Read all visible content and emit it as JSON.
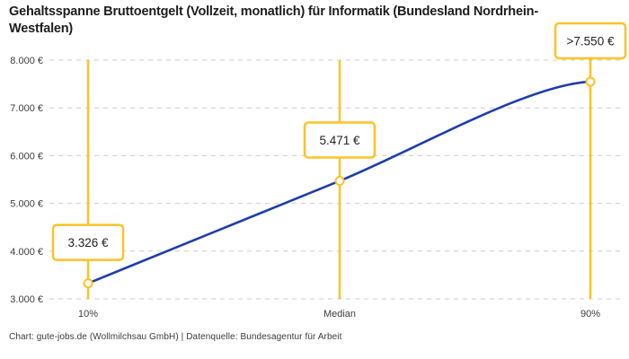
{
  "header": {
    "title": "Gehaltsspanne Bruttoentgelt (Vollzeit, monatlich) für Informatik (Bundesland Nordrhein-Westfalen)"
  },
  "footer": {
    "text": "Chart: gute-jobs.de (Wollmilchsau GmbH) | Datenquelle: Bundesagentur für Arbeit"
  },
  "chart_data": {
    "type": "line",
    "title": "Gehaltsspanne Bruttoentgelt (Vollzeit, monatlich) für Informatik (Bundesland Nordrhein-Westfalen)",
    "categories": [
      "10%",
      "Median",
      "90%"
    ],
    "values": [
      3326,
      5471,
      7550
    ],
    "point_labels": [
      "3.326 €",
      "5.471 €",
      ">7.550 €"
    ],
    "yticks": [
      3000,
      4000,
      5000,
      6000,
      7000,
      8000
    ],
    "ytick_labels": [
      "3.000 €",
      "4.000 €",
      "5.000 €",
      "6.000 €",
      "7.000 €",
      "8.000 €"
    ],
    "ylim": [
      3000,
      8000
    ],
    "xlabel": "",
    "ylabel": "",
    "grid": "horizontal-dashed",
    "legend": "none",
    "colors": {
      "series_line": "#1F3EAA",
      "accent_yellow": "#FCC226",
      "gridline": "#cccccc",
      "label_text": "#222222",
      "tick_text": "#3c3c3c"
    }
  }
}
